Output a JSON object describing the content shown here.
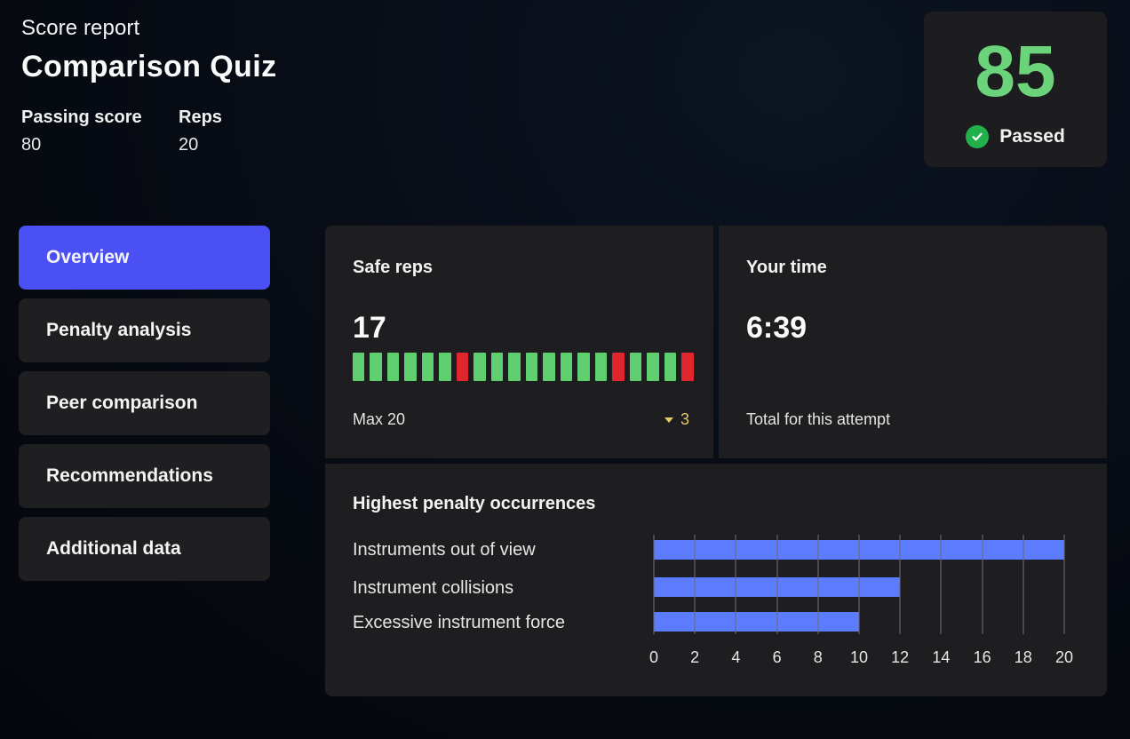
{
  "header": {
    "eyebrow": "Score report",
    "title": "Comparison Quiz",
    "meta": [
      {
        "label": "Passing score",
        "value": "80"
      },
      {
        "label": "Reps",
        "value": "20"
      }
    ]
  },
  "score_card": {
    "score": "85",
    "status": "Passed",
    "status_icon": "check-circle-icon",
    "score_color": "#6bd47b"
  },
  "nav": {
    "items": [
      {
        "label": "Overview",
        "active": true
      },
      {
        "label": "Penalty analysis",
        "active": false
      },
      {
        "label": "Peer comparison",
        "active": false
      },
      {
        "label": "Recommendations",
        "active": false
      },
      {
        "label": "Additional data",
        "active": false
      }
    ],
    "active_color": "#4b50f5"
  },
  "safe_reps": {
    "title": "Safe reps",
    "value": "17",
    "footer": "Max 20",
    "delta": "3",
    "delta_icon": "triangle-down-icon",
    "reps": [
      "safe",
      "safe",
      "safe",
      "safe",
      "safe",
      "safe",
      "unsafe",
      "safe",
      "safe",
      "safe",
      "safe",
      "safe",
      "safe",
      "safe",
      "safe",
      "unsafe",
      "safe",
      "safe",
      "safe",
      "unsafe"
    ],
    "colors": {
      "safe": "#5fcf6f",
      "unsafe": "#e0262e"
    }
  },
  "your_time": {
    "title": "Your time",
    "value": "6:39",
    "footer": "Total for this attempt"
  },
  "penalties": {
    "title": "Highest penalty occurrences"
  },
  "chart_data": {
    "type": "bar",
    "orientation": "horizontal",
    "title": "Highest penalty occurrences",
    "categories": [
      "Instruments out of view",
      "Instrument collisions",
      "Excessive instrument force"
    ],
    "values": [
      20,
      12,
      10
    ],
    "xlabel": "",
    "ylabel": "",
    "xlim": [
      0,
      20
    ],
    "xticks": [
      "0",
      "2",
      "4",
      "6",
      "8",
      "10",
      "12",
      "14",
      "16",
      "18",
      "20"
    ],
    "grid": true,
    "bar_color": "#5b7cff"
  }
}
